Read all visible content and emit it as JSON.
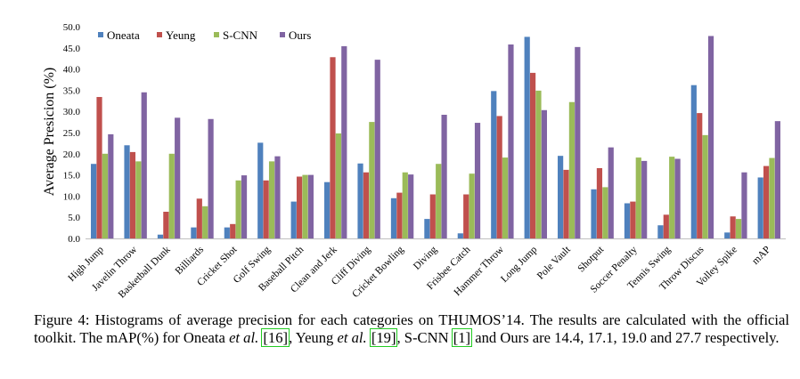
{
  "chart_data": {
    "type": "bar",
    "title": "",
    "xlabel": "",
    "ylabel": "Average Presicion (%)",
    "ylim": [
      0,
      50
    ],
    "yticks": [
      "0.0",
      "5.0",
      "10.0",
      "15.0",
      "20.0",
      "25.0",
      "30.0",
      "35.0",
      "40.0",
      "45.0",
      "50.0"
    ],
    "legend_position": "top-left",
    "grid": false,
    "categories": [
      "High Jump",
      "Javelin Throw",
      "Basketball Dunk",
      "Billiards",
      "Cricket Shot",
      "Golf Swing",
      "Baseball Pitch",
      "Clean and Jerk",
      "Cliff Diving",
      "Cricket Bowling",
      "Diving",
      "Frisbee Catch",
      "Hammer Throw",
      "Long Jump",
      "Pole Vault",
      "Shotput",
      "Soccer Penalty",
      "Tennis Swing",
      "Throw Discus",
      "Volley Spike",
      "mAP"
    ],
    "series": [
      {
        "name": "Oneata",
        "color": "#4f81bd",
        "values": [
          17.6,
          22.0,
          0.9,
          2.6,
          2.6,
          22.6,
          8.7,
          13.3,
          17.7,
          9.5,
          4.6,
          1.2,
          34.8,
          47.6,
          19.5,
          11.6,
          8.3,
          3.1,
          36.2,
          1.4,
          14.4
        ]
      },
      {
        "name": "Yeung",
        "color": "#c0504d",
        "values": [
          33.4,
          20.4,
          6.3,
          9.4,
          3.4,
          13.7,
          14.6,
          42.8,
          15.6,
          10.8,
          10.4,
          10.4,
          28.9,
          39.1,
          16.2,
          16.6,
          8.7,
          5.6,
          29.6,
          5.2,
          17.1
        ]
      },
      {
        "name": "S-CNN",
        "color": "#9bbb59",
        "values": [
          20.0,
          18.2,
          20.0,
          7.6,
          13.7,
          18.2,
          15.0,
          24.8,
          27.5,
          15.6,
          17.6,
          15.3,
          19.1,
          34.9,
          32.2,
          12.1,
          19.1,
          19.3,
          24.4,
          4.6,
          19.0
        ]
      },
      {
        "name": "Ours",
        "color": "#8064a2",
        "values": [
          24.6,
          34.5,
          28.5,
          28.2,
          14.9,
          19.4,
          15.0,
          45.4,
          42.2,
          15.1,
          29.2,
          27.3,
          45.8,
          30.3,
          45.2,
          21.5,
          18.3,
          18.8,
          47.8,
          15.6,
          27.7
        ]
      }
    ]
  },
  "caption": {
    "prefix": "Figure 4: ",
    "text1": "Histograms of average precision for each categories on THUMOS’14. The results are calculated with the official toolkit. The mAP(%) for Oneata ",
    "etal1": "et al.",
    "sp1": " ",
    "ref1": "[16]",
    "text2": ", Yeung ",
    "etal2": "et al.",
    "sp2": " ",
    "ref2": "[19]",
    "text3": ", S-CNN ",
    "ref3": "[1]",
    "text4": " and Ours are 14.4, 17.1, 19.0 and 27.7 respectively."
  }
}
